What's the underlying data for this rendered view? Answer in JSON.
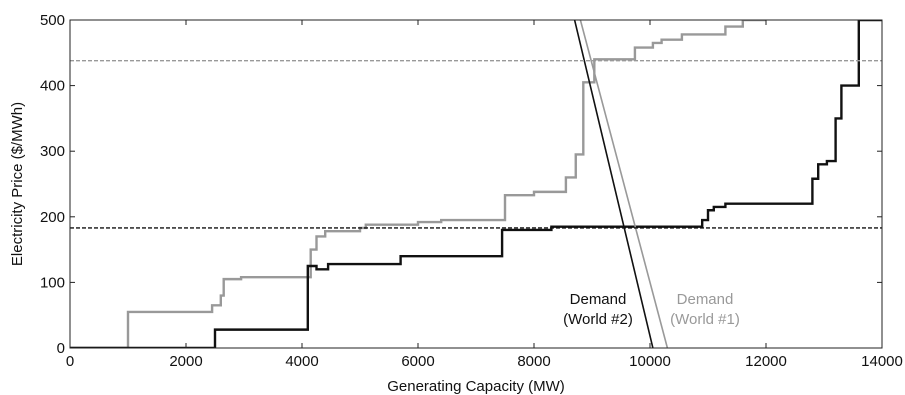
{
  "chart_data": {
    "type": "line",
    "title": "",
    "xlabel": "Generating Capacity (MW)",
    "ylabel": "Electricity Price ($/MWh)",
    "xlim": [
      0,
      14000
    ],
    "ylim": [
      0,
      500
    ],
    "xticks": [
      0,
      2000,
      4000,
      6000,
      8000,
      10000,
      12000,
      14000
    ],
    "yticks": [
      0,
      100,
      200,
      300,
      400,
      500
    ],
    "grid": false,
    "legend": "none",
    "series": [
      {
        "kind": "supply-step",
        "color": "#999999",
        "x": [
          0,
          1000,
          1000,
          2450,
          2450,
          2600,
          2600,
          2650,
          2650,
          2950,
          2950,
          4150,
          4150,
          4250,
          4250,
          4400,
          4400,
          5000,
          5000,
          5100,
          5100,
          6000,
          6000,
          6400,
          6400,
          7500,
          7500,
          8000,
          8000,
          8550,
          8550,
          8720,
          8720,
          8850,
          8850,
          9040,
          9040,
          9740,
          9740,
          10050,
          10050,
          10200,
          10200,
          10550,
          10550,
          11300,
          11300,
          11600,
          11600,
          12000
        ],
        "y": [
          0,
          0,
          55,
          55,
          65,
          65,
          80,
          80,
          105,
          105,
          108,
          108,
          150,
          150,
          170,
          170,
          178,
          178,
          183,
          183,
          188,
          188,
          192,
          192,
          195,
          195,
          233,
          233,
          238,
          238,
          260,
          260,
          295,
          295,
          405,
          405,
          440,
          440,
          458,
          458,
          465,
          465,
          470,
          470,
          478,
          478,
          490,
          490,
          500,
          500
        ]
      },
      {
        "kind": "supply-step",
        "color": "#111111",
        "x": [
          0,
          2500,
          2500,
          4100,
          4100,
          4250,
          4250,
          4450,
          4450,
          5700,
          5700,
          7450,
          7450,
          8300,
          8300,
          10900,
          10900,
          11000,
          11000,
          11100,
          11100,
          11300,
          11300,
          12800,
          12800,
          12900,
          12900,
          13050,
          13050,
          13200,
          13200,
          13300,
          13300,
          13600,
          13600,
          13700,
          13700,
          14000
        ],
        "y": [
          0,
          0,
          28,
          28,
          125,
          125,
          120,
          120,
          128,
          128,
          140,
          140,
          180,
          180,
          185,
          185,
          195,
          195,
          210,
          210,
          215,
          215,
          220,
          220,
          258,
          258,
          280,
          280,
          285,
          285,
          350,
          350,
          400,
          400,
          500,
          500,
          500,
          500
        ]
      },
      {
        "kind": "demand",
        "color": "#999999",
        "x": [
          8800,
          10300
        ],
        "y": [
          500,
          0
        ]
      },
      {
        "kind": "demand",
        "color": "#111111",
        "x": [
          8700,
          10050
        ],
        "y": [
          500,
          0
        ]
      },
      {
        "kind": "clearing-price",
        "color": "#999999",
        "x": [
          0,
          14000
        ],
        "y": [
          438,
          438
        ]
      },
      {
        "kind": "clearing-price",
        "color": "#111111",
        "x": [
          0,
          14000
        ],
        "y": [
          183,
          183
        ]
      }
    ],
    "annotations": [
      {
        "lines": [
          "Demand",
          "(World #2)"
        ],
        "color": "#111111"
      },
      {
        "lines": [
          "Demand",
          "(World #1)"
        ],
        "color": "#999999"
      }
    ]
  }
}
